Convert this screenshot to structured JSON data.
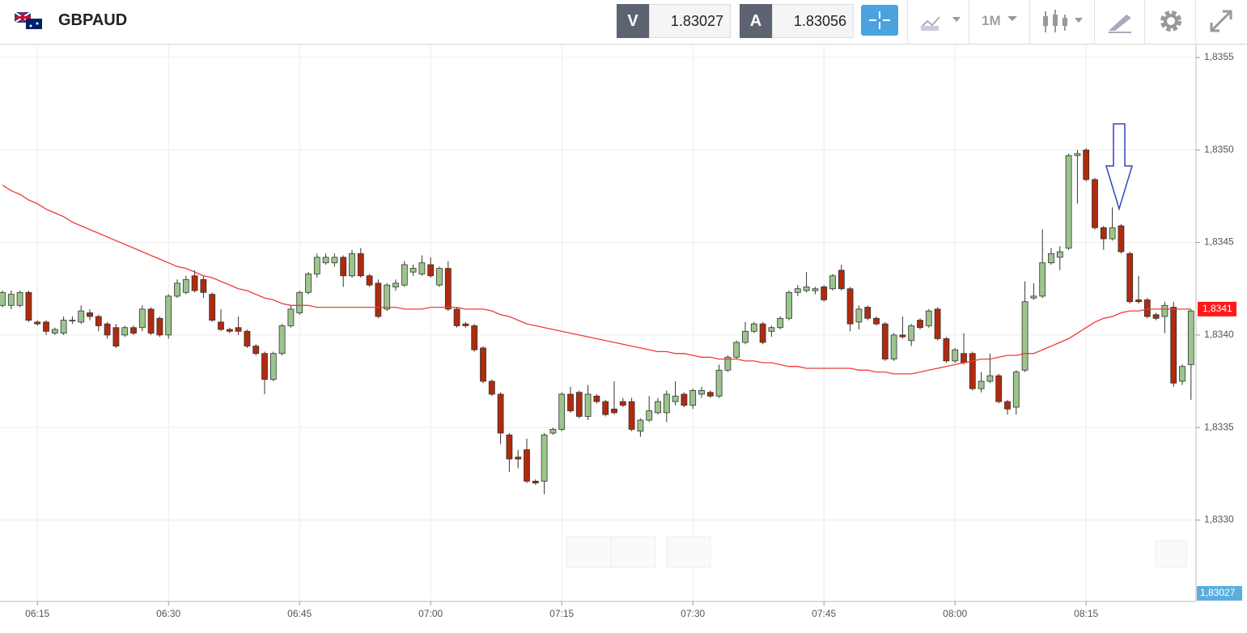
{
  "header": {
    "symbol": "GBPAUD",
    "bid_label": "V",
    "bid": 1.83027,
    "ask_label": "A",
    "ask": 1.83056,
    "timeframe": "1M"
  },
  "chart_data": {
    "type": "candlestick",
    "categories": [
      null,
      null,
      null,
      null,
      "06:15",
      null,
      null,
      null,
      null,
      null,
      null,
      null,
      null,
      null,
      null,
      null,
      null,
      null,
      null,
      "06:30",
      null,
      null,
      null,
      null,
      null,
      null,
      null,
      null,
      null,
      null,
      null,
      null,
      null,
      null,
      "06:45",
      null,
      null,
      null,
      null,
      null,
      null,
      null,
      null,
      null,
      null,
      null,
      null,
      null,
      null,
      "07:00",
      null,
      null,
      null,
      null,
      null,
      null,
      null,
      null,
      null,
      null,
      null,
      null,
      null,
      null,
      "07:15",
      null,
      null,
      null,
      null,
      null,
      null,
      null,
      null,
      null,
      null,
      null,
      null,
      null,
      null,
      "07:30",
      null,
      null,
      null,
      null,
      null,
      null,
      null,
      null,
      null,
      null,
      null,
      null,
      null,
      null,
      "07:45",
      null,
      null,
      null,
      null,
      null,
      null,
      null,
      null,
      null,
      null,
      null,
      null,
      null,
      null,
      "08:00",
      null,
      null,
      null,
      null,
      null,
      null,
      null,
      null,
      null,
      null,
      null,
      null,
      null,
      null,
      "08:15",
      null,
      null,
      null,
      null,
      null,
      null,
      null,
      null,
      null,
      null,
      null,
      null
    ],
    "open": [
      1.83416,
      1.83416,
      1.83416,
      1.83423,
      1.83407,
      1.83407,
      1.83401,
      1.83401,
      1.83408,
      1.83407,
      1.83412,
      1.8341,
      1.83406,
      1.83404,
      1.834,
      1.83404,
      1.83404,
      1.83414,
      1.83409,
      1.834,
      1.83421,
      1.83423,
      1.83432,
      1.8343,
      1.83422,
      1.83407,
      1.83403,
      1.83404,
      1.83402,
      1.83394,
      1.8339,
      1.83376,
      1.8339,
      1.83405,
      1.83412,
      1.83423,
      1.83433,
      1.83439,
      1.83439,
      1.83442,
      1.83432,
      1.83444,
      1.83432,
      1.83428,
      1.83414,
      1.83426,
      1.83427,
      1.83434,
      1.83433,
      1.83438,
      1.83427,
      1.83436,
      1.83414,
      1.83406,
      1.83405,
      1.83393,
      1.83375,
      1.83368,
      1.83346,
      1.83334,
      1.83338,
      1.83321,
      1.83321,
      1.83347,
      1.83349,
      1.83368,
      1.83369,
      1.83356,
      1.83367,
      1.83364,
      1.8336,
      1.83364,
      1.83364,
      1.83348,
      1.83354,
      1.83358,
      1.83358,
      1.83364,
      1.83368,
      1.83362,
      1.83368,
      1.83369,
      1.83367,
      1.83381,
      1.83388,
      1.83396,
      1.83402,
      1.83406,
      1.83402,
      1.83404,
      1.83409,
      1.83423,
      1.83424,
      1.83424,
      1.83426,
      1.83425,
      1.83435,
      1.83425,
      1.83407,
      1.83415,
      1.83409,
      1.83406,
      1.83387,
      1.834,
      1.83397,
      1.83408,
      1.83405,
      1.83414,
      1.83398,
      1.83386,
      1.8339,
      1.8339,
      1.83371,
      1.83375,
      1.83378,
      1.83364,
      1.83361,
      1.83381,
      1.8342,
      1.83421,
      1.83439,
      1.83442,
      1.83447,
      1.83497,
      1.835,
      1.83484,
      1.83458,
      1.83452,
      1.83459,
      1.83444,
      1.83419,
      1.83419,
      1.83411,
      1.8341,
      1.83415,
      1.83375,
      1.83384
    ],
    "high": [
      1.83424,
      1.83424,
      1.83424,
      1.83424,
      1.83408,
      1.83408,
      1.83404,
      1.8341,
      1.8341,
      1.83416,
      1.83414,
      1.83411,
      1.83407,
      1.83406,
      1.83405,
      1.83405,
      1.83416,
      1.83415,
      1.8341,
      1.83422,
      1.8343,
      1.83432,
      1.83435,
      1.83432,
      1.83423,
      1.83414,
      1.83404,
      1.8341,
      1.83403,
      1.83395,
      1.83391,
      1.83391,
      1.83406,
      1.83416,
      1.83424,
      1.83434,
      1.83444,
      1.83444,
      1.83444,
      1.83443,
      1.83446,
      1.83447,
      1.83433,
      1.8343,
      1.83428,
      1.8343,
      1.8344,
      1.83438,
      1.83443,
      1.83442,
      1.83437,
      1.8344,
      1.83415,
      1.83407,
      1.83406,
      1.83394,
      1.83376,
      1.83369,
      1.83347,
      1.83338,
      1.83344,
      1.83322,
      1.83347,
      1.8335,
      1.83369,
      1.83372,
      1.8337,
      1.83373,
      1.83368,
      1.83365,
      1.83375,
      1.83366,
      1.83366,
      1.83355,
      1.83367,
      1.83366,
      1.8337,
      1.83375,
      1.83369,
      1.83371,
      1.83372,
      1.8337,
      1.83384,
      1.83389,
      1.83397,
      1.83407,
      1.83407,
      1.83407,
      1.83405,
      1.8341,
      1.83424,
      1.83427,
      1.83434,
      1.83426,
      1.83427,
      1.83433,
      1.83438,
      1.83426,
      1.83416,
      1.83416,
      1.8341,
      1.83407,
      1.83401,
      1.8341,
      1.83406,
      1.83409,
      1.83414,
      1.83415,
      1.83399,
      1.83393,
      1.83401,
      1.83391,
      1.8338,
      1.8339,
      1.83379,
      1.83365,
      1.83381,
      1.83429,
      1.83428,
      1.83457,
      1.83447,
      1.83448,
      1.83498,
      1.835,
      1.83501,
      1.83485,
      1.83459,
      1.83469,
      1.8346,
      1.83445,
      1.83432,
      1.8342,
      1.83412,
      1.83418,
      1.83418,
      1.83384,
      1.83414
    ],
    "low": [
      1.83415,
      1.83414,
      1.83415,
      1.83407,
      1.83405,
      1.834,
      1.834,
      1.834,
      1.83406,
      1.83406,
      1.83408,
      1.83402,
      1.83398,
      1.83393,
      1.83399,
      1.834,
      1.83402,
      1.834,
      1.83399,
      1.83398,
      1.8342,
      1.83422,
      1.83423,
      1.8342,
      1.83407,
      1.83402,
      1.83401,
      1.834,
      1.83393,
      1.83389,
      1.83368,
      1.83375,
      1.83389,
      1.83404,
      1.83411,
      1.83422,
      1.83431,
      1.83438,
      1.83437,
      1.83426,
      1.83431,
      1.83431,
      1.83426,
      1.83409,
      1.83413,
      1.83424,
      1.83426,
      1.83432,
      1.83432,
      1.83431,
      1.83426,
      1.83413,
      1.83404,
      1.83404,
      1.83391,
      1.83374,
      1.83367,
      1.83341,
      1.83326,
      1.83328,
      1.8332,
      1.83319,
      1.83314,
      1.83346,
      1.83348,
      1.83358,
      1.83355,
      1.83354,
      1.83363,
      1.83356,
      1.83357,
      1.83361,
      1.83348,
      1.83345,
      1.83353,
      1.83357,
      1.83353,
      1.83362,
      1.83361,
      1.8336,
      1.83366,
      1.83366,
      1.83366,
      1.8338,
      1.83387,
      1.83395,
      1.83401,
      1.83395,
      1.83399,
      1.83403,
      1.83408,
      1.83421,
      1.83423,
      1.83422,
      1.83418,
      1.83424,
      1.83424,
      1.83402,
      1.83403,
      1.83408,
      1.83405,
      1.83386,
      1.83386,
      1.83398,
      1.83394,
      1.83403,
      1.83404,
      1.83397,
      1.83385,
      1.83385,
      1.83384,
      1.8337,
      1.83369,
      1.83374,
      1.83363,
      1.83357,
      1.83357,
      1.8338,
      1.83419,
      1.8342,
      1.83438,
      1.83435,
      1.83446,
      1.83471,
      1.83483,
      1.83457,
      1.83446,
      1.83451,
      1.83444,
      1.83417,
      1.83417,
      1.83409,
      1.83408,
      1.83401,
      1.83372,
      1.83373,
      1.83365
    ],
    "close": [
      1.83423,
      1.83422,
      1.83423,
      1.83408,
      1.83406,
      1.83402,
      1.83403,
      1.83408,
      1.83408,
      1.83413,
      1.8341,
      1.83405,
      1.834,
      1.83394,
      1.83404,
      1.83401,
      1.83414,
      1.83401,
      1.834,
      1.83421,
      1.83428,
      1.8343,
      1.83424,
      1.83423,
      1.83408,
      1.83403,
      1.83402,
      1.83402,
      1.83394,
      1.8339,
      1.83376,
      1.8339,
      1.83405,
      1.83414,
      1.83423,
      1.83433,
      1.83442,
      1.83442,
      1.83442,
      1.83432,
      1.83444,
      1.83432,
      1.83427,
      1.8341,
      1.83427,
      1.83428,
      1.83438,
      1.83436,
      1.83439,
      1.83432,
      1.83436,
      1.83414,
      1.83405,
      1.83405,
      1.83392,
      1.83375,
      1.83368,
      1.83347,
      1.83333,
      1.83333,
      1.83321,
      1.8332,
      1.83346,
      1.83349,
      1.83368,
      1.83359,
      1.83356,
      1.83368,
      1.83364,
      1.83357,
      1.83358,
      1.83362,
      1.83349,
      1.83354,
      1.83359,
      1.83364,
      1.83368,
      1.83367,
      1.83362,
      1.8337,
      1.8337,
      1.83367,
      1.83381,
      1.83388,
      1.83396,
      1.83402,
      1.83406,
      1.83396,
      1.83404,
      1.83409,
      1.83423,
      1.83425,
      1.83426,
      1.83425,
      1.83419,
      1.83432,
      1.83425,
      1.83406,
      1.83414,
      1.83409,
      1.83406,
      1.83387,
      1.834,
      1.83399,
      1.83405,
      1.83404,
      1.83413,
      1.83398,
      1.83386,
      1.83392,
      1.83385,
      1.83371,
      1.83375,
      1.83378,
      1.83364,
      1.8336,
      1.8338,
      1.83418,
      1.83421,
      1.83439,
      1.83444,
      1.83445,
      1.83497,
      1.83498,
      1.83484,
      1.83458,
      1.83452,
      1.83458,
      1.83445,
      1.83418,
      1.83418,
      1.8341,
      1.83409,
      1.83416,
      1.83374,
      1.83383,
      1.83413
    ],
    "ma": [
      1.83481,
      1.83478,
      1.83476,
      1.83473,
      1.83471,
      1.83468,
      1.83466,
      1.83464,
      1.83461,
      1.83459,
      1.83457,
      1.83455,
      1.83453,
      1.83451,
      1.83449,
      1.83447,
      1.83445,
      1.83443,
      1.83441,
      1.83439,
      1.83437,
      1.83436,
      1.83434,
      1.83432,
      1.83431,
      1.83429,
      1.83427,
      1.83425,
      1.83424,
      1.83422,
      1.8342,
      1.83419,
      1.83417,
      1.83416,
      1.83416,
      1.83416,
      1.83415,
      1.83415,
      1.83415,
      1.83415,
      1.83415,
      1.83415,
      1.83415,
      1.83415,
      1.83415,
      1.83415,
      1.83414,
      1.83414,
      1.83414,
      1.83415,
      1.83415,
      1.83415,
      1.83415,
      1.83414,
      1.83414,
      1.83414,
      1.83413,
      1.83411,
      1.8341,
      1.83408,
      1.83406,
      1.83405,
      1.83404,
      1.83403,
      1.83402,
      1.83401,
      1.834,
      1.83399,
      1.83398,
      1.83397,
      1.83396,
      1.83395,
      1.83394,
      1.83393,
      1.83392,
      1.83391,
      1.83391,
      1.8339,
      1.8339,
      1.83389,
      1.83388,
      1.83388,
      1.83387,
      1.83387,
      1.83387,
      1.83386,
      1.83386,
      1.83385,
      1.83385,
      1.83384,
      1.83383,
      1.83383,
      1.83382,
      1.83382,
      1.83382,
      1.83382,
      1.83382,
      1.83382,
      1.83381,
      1.83381,
      1.8338,
      1.8338,
      1.83379,
      1.83379,
      1.83379,
      1.8338,
      1.83381,
      1.83382,
      1.83383,
      1.83384,
      1.83385,
      1.83386,
      1.83387,
      1.83387,
      1.83388,
      1.83389,
      1.83389,
      1.8339,
      1.8339,
      1.83392,
      1.83394,
      1.83396,
      1.83398,
      1.83401,
      1.83404,
      1.83407,
      1.83409,
      1.8341,
      1.83412,
      1.83413,
      1.83413,
      1.83414,
      1.83414,
      1.83414,
      1.83414,
      1.83414,
      1.83414
    ],
    "up_color": "#9cc58c",
    "down_color": "#b02a0e",
    "ma_color": "#f03a3a",
    "ma_label": "1,8341",
    "price_label": "1,83027",
    "ylim": [
      1.83256,
      1.83557
    ],
    "yticks": [
      {
        "value": 1.833,
        "label": "1,8330"
      },
      {
        "value": 1.8335,
        "label": "1,8335"
      },
      {
        "value": 1.834,
        "label": "1,8340"
      },
      {
        "value": 1.8345,
        "label": "1,8345"
      },
      {
        "value": 1.835,
        "label": "1,8350"
      },
      {
        "value": 1.8355,
        "label": "1,8355"
      }
    ],
    "grid": true
  }
}
